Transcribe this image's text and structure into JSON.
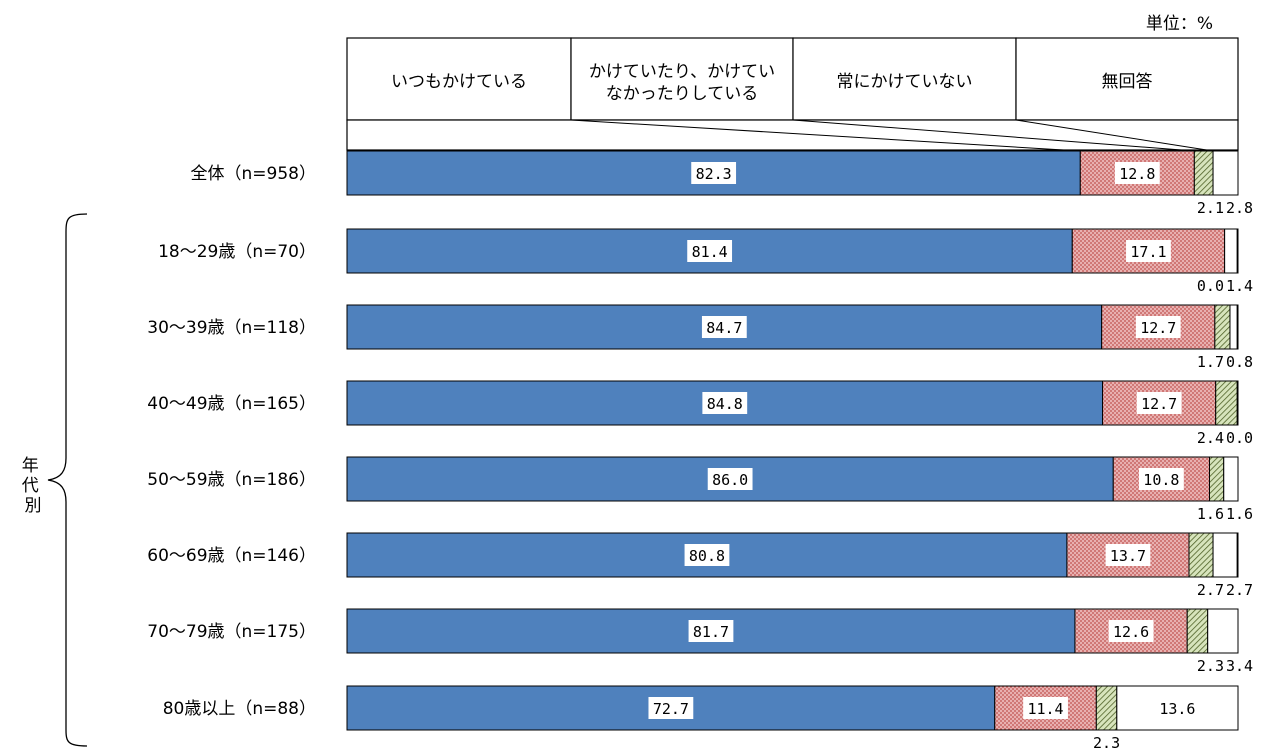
{
  "chart_data": {
    "type": "bar",
    "orientation": "horizontal",
    "stacked": true,
    "unit_label": "単位：%",
    "legend": [
      "いつもかけている",
      "かけていたり、かけていなかったりしている",
      "常にかけていない",
      "無回答"
    ],
    "legend_lines": [
      [
        "いつもかけている"
      ],
      [
        "かけていたり、かけてい",
        "なかったりしている"
      ],
      [
        "常にかけていない"
      ],
      [
        "無回答"
      ]
    ],
    "group_label": "年代別",
    "categories": [
      "全体（n=958）",
      "18～29歳（n=70）",
      "30～39歳（n=118）",
      "40～49歳（n=165）",
      "50～59歳（n=186）",
      "60～69歳（n=146）",
      "70～79歳（n=175）",
      "80歳以上（n=88）"
    ],
    "series": [
      {
        "name": "いつもかけている",
        "values": [
          82.3,
          81.4,
          84.7,
          84.8,
          86.0,
          80.8,
          81.7,
          72.7
        ],
        "labels": [
          "82.3",
          "81.4",
          "84.7",
          "84.8",
          "86.0",
          "80.8",
          "81.7",
          "72.7"
        ]
      },
      {
        "name": "かけていたり、かけていなかったりしている",
        "values": [
          12.8,
          17.1,
          12.7,
          12.7,
          10.8,
          13.7,
          12.6,
          11.4
        ],
        "labels": [
          "12.8",
          "17.1",
          "12.7",
          "12.7",
          "10.8",
          "13.7",
          "12.6",
          "11.4"
        ]
      },
      {
        "name": "常にかけていない",
        "values": [
          2.1,
          0.0,
          1.7,
          2.4,
          1.6,
          2.7,
          2.3,
          2.3
        ],
        "labels": [
          "2.1",
          "0.0",
          "1.7",
          "2.4",
          "1.6",
          "2.7",
          "2.3",
          "2.3"
        ]
      },
      {
        "name": "無回答",
        "values": [
          2.8,
          1.4,
          0.8,
          0.0,
          1.6,
          2.7,
          3.4,
          13.6
        ],
        "labels": [
          "2.8",
          "1.4",
          "0.8",
          "0.0",
          "1.6",
          "2.7",
          "3.4",
          "13.6"
        ]
      }
    ],
    "xlim": [
      0,
      100
    ],
    "colors": [
      "#4f81bd",
      "#e6a5a5",
      "#c4d79b",
      "#ffffff"
    ]
  }
}
